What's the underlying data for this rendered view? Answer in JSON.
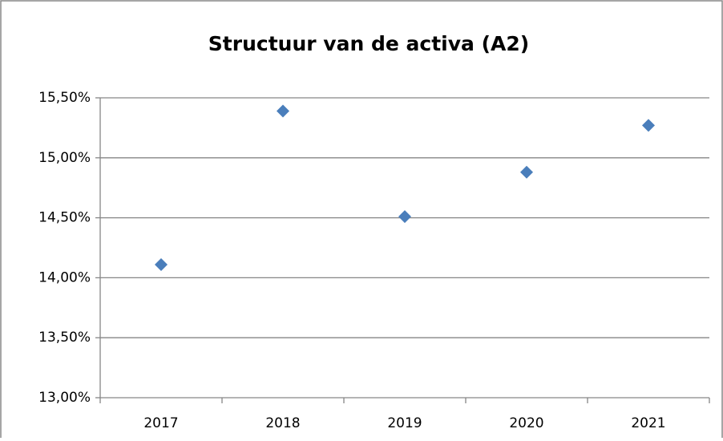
{
  "chart_data": {
    "type": "line",
    "title": "Structuur van de activa (A2)",
    "categories": [
      "2017",
      "2018",
      "2019",
      "2020",
      "2021"
    ],
    "series": [
      {
        "name": "A2",
        "color": "#4a7ebb",
        "values": [
          14.11,
          15.39,
          14.51,
          14.88,
          15.27
        ]
      }
    ],
    "ylim": [
      13,
      15.5
    ],
    "yticks": [
      {
        "value": 13,
        "label": "13,00%"
      },
      {
        "value": 13.5,
        "label": "13,50%"
      },
      {
        "value": 14,
        "label": "14,00%"
      },
      {
        "value": 14.5,
        "label": "14,50%"
      },
      {
        "value": 15,
        "label": "15,00%"
      },
      {
        "value": 15.5,
        "label": "15,50%"
      }
    ],
    "grid": true,
    "legend": false
  }
}
